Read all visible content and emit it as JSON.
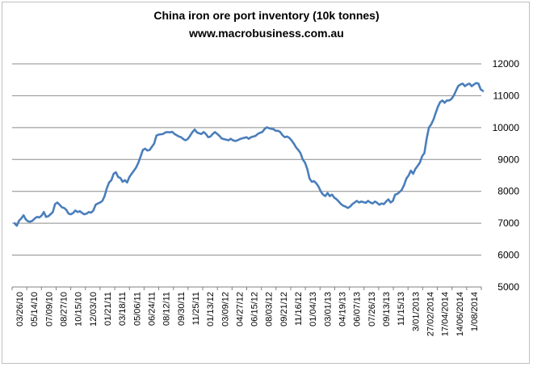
{
  "chart_data": {
    "type": "line",
    "title": "China iron ore port inventory (10k tonnes)",
    "subtitle": "www.macrobusiness.com.au",
    "xlabel": "",
    "ylabel": "",
    "ylim": [
      5000,
      12000
    ],
    "yticks": [
      5000,
      6000,
      7000,
      8000,
      9000,
      10000,
      11000,
      12000
    ],
    "grid": true,
    "legend": "none",
    "x_tick_labels": [
      "03/26/10",
      "05/14/10",
      "07/09/10",
      "08/27/10",
      "10/15/10",
      "12/03/10",
      "01/21/11",
      "03/18/11",
      "05/06/11",
      "06/24/11",
      "08/12/11",
      "09/30/11",
      "11/25/11",
      "01/13/12",
      "03/09/12",
      "04/27/12",
      "06/15/12",
      "08/03/12",
      "09/21/12",
      "11/16/12",
      "01/04/13",
      "03/01/13",
      "04/19/13",
      "06/07/13",
      "07/26/13",
      "09/13/13",
      "11/15/13",
      "3/01/2013",
      "27/02/2014",
      "17/04/2014",
      "14/06/2014",
      "1/08/2014"
    ],
    "series": [
      {
        "color": "#4a7ebb",
        "values": [
          7000,
          6920,
          7080,
          7150,
          7250,
          7120,
          7060,
          7050,
          7080,
          7150,
          7200,
          7180,
          7240,
          7350,
          7200,
          7220,
          7280,
          7350,
          7600,
          7650,
          7580,
          7500,
          7480,
          7420,
          7300,
          7280,
          7320,
          7400,
          7350,
          7380,
          7320,
          7280,
          7300,
          7350,
          7330,
          7400,
          7580,
          7620,
          7650,
          7700,
          7850,
          8100,
          8280,
          8350,
          8550,
          8600,
          8450,
          8420,
          8300,
          8350,
          8280,
          8450,
          8550,
          8650,
          8750,
          8900,
          9100,
          9300,
          9340,
          9280,
          9300,
          9400,
          9500,
          9750,
          9780,
          9790,
          9800,
          9850,
          9860,
          9850,
          9870,
          9800,
          9760,
          9720,
          9700,
          9640,
          9600,
          9650,
          9750,
          9860,
          9940,
          9850,
          9820,
          9800,
          9860,
          9800,
          9700,
          9720,
          9800,
          9860,
          9800,
          9740,
          9660,
          9640,
          9620,
          9600,
          9650,
          9600,
          9580,
          9600,
          9640,
          9660,
          9680,
          9700,
          9650,
          9700,
          9720,
          9740,
          9800,
          9840,
          9860,
          9950,
          10010,
          9980,
          9960,
          9950,
          9900,
          9900,
          9860,
          9760,
          9700,
          9720,
          9680,
          9600,
          9500,
          9380,
          9300,
          9200,
          9000,
          8900,
          8700,
          8400,
          8300,
          8320,
          8250,
          8150,
          8000,
          7900,
          7850,
          7950,
          7850,
          7900,
          7800,
          7750,
          7680,
          7600,
          7550,
          7520,
          7480,
          7520,
          7600,
          7650,
          7700,
          7650,
          7680,
          7660,
          7640,
          7700,
          7650,
          7620,
          7680,
          7640,
          7580,
          7620,
          7600,
          7680,
          7750,
          7650,
          7700,
          7900,
          7920,
          7980,
          8050,
          8200,
          8400,
          8500,
          8650,
          8550,
          8700,
          8800,
          8900,
          9100,
          9200,
          9650,
          10000,
          10100,
          10250,
          10450,
          10650,
          10800,
          10850,
          10780,
          10850,
          10850,
          10900,
          11000,
          11150,
          11300,
          11350,
          11380,
          11300,
          11350,
          11380,
          11300,
          11350,
          11400,
          11380,
          11200,
          11150
        ]
      }
    ]
  }
}
